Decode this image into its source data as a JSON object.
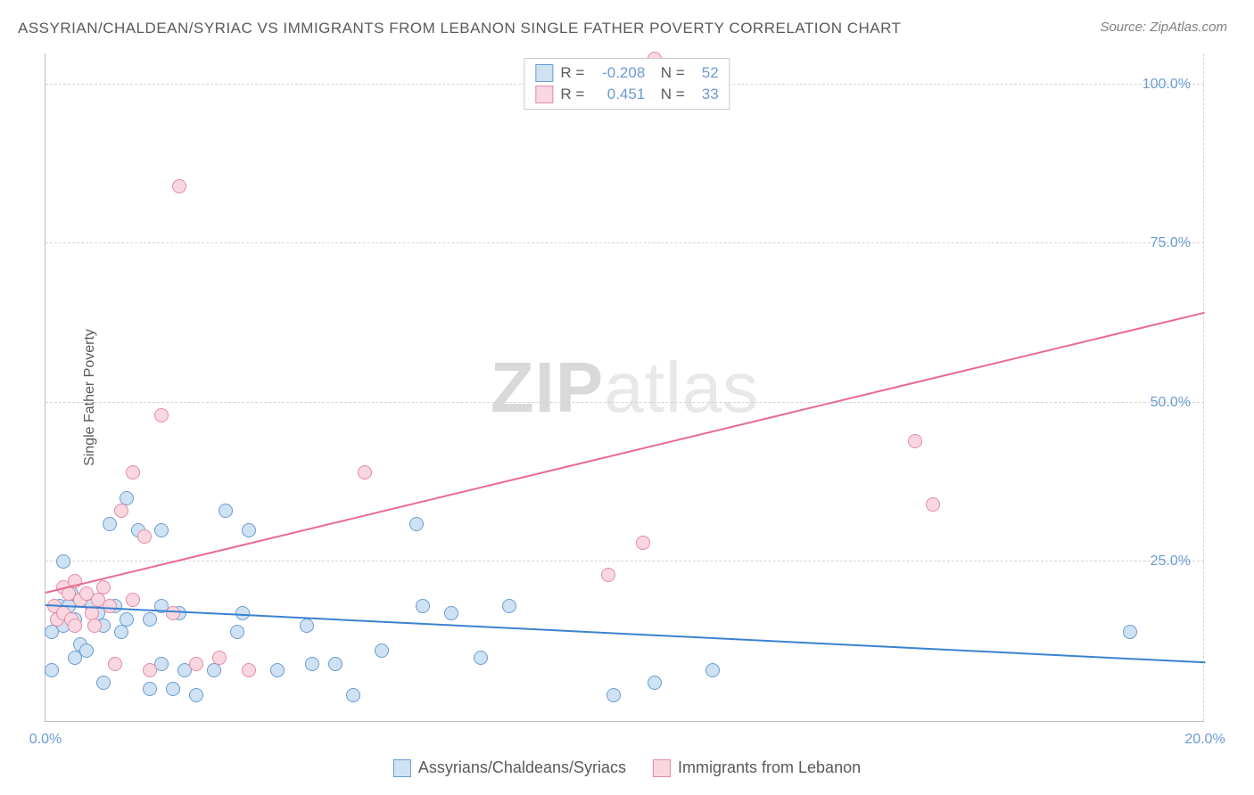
{
  "title": "ASSYRIAN/CHALDEAN/SYRIAC VS IMMIGRANTS FROM LEBANON SINGLE FATHER POVERTY CORRELATION CHART",
  "source": "Source: ZipAtlas.com",
  "watermark_a": "ZIP",
  "watermark_b": "atlas",
  "y_axis_label": "Single Father Poverty",
  "chart": {
    "type": "scatter",
    "xlim": [
      0,
      20
    ],
    "ylim": [
      0,
      105
    ],
    "x_ticks": [
      0,
      20
    ],
    "x_tick_labels": [
      "0.0%",
      "20.0%"
    ],
    "y_ticks": [
      25,
      50,
      75,
      100
    ],
    "y_tick_labels": [
      "25.0%",
      "50.0%",
      "75.0%",
      "100.0%"
    ],
    "grid_color": "#d5d5d5",
    "axis_color": "#bfbfbf",
    "background_color": "#ffffff",
    "series": [
      {
        "key": "assyrian",
        "label": "Assyrians/Chaldeans/Syriacs",
        "R": "-0.208",
        "N": "52",
        "fill": "#cfe2f3",
        "stroke": "#6b9bd1",
        "line_color": "#3b82d1",
        "trend": {
          "x1": 0,
          "y1": 18,
          "x2": 20,
          "y2": 9
        },
        "points": [
          [
            0.1,
            8
          ],
          [
            0.1,
            14
          ],
          [
            0.2,
            16
          ],
          [
            0.25,
            18
          ],
          [
            0.3,
            15
          ],
          [
            0.3,
            25
          ],
          [
            0.4,
            18
          ],
          [
            0.45,
            20
          ],
          [
            0.5,
            10
          ],
          [
            0.5,
            16
          ],
          [
            0.6,
            12
          ],
          [
            0.6,
            19
          ],
          [
            0.7,
            11
          ],
          [
            0.8,
            18
          ],
          [
            0.9,
            17
          ],
          [
            1.0,
            15
          ],
          [
            1.0,
            6
          ],
          [
            1.1,
            31
          ],
          [
            1.2,
            18
          ],
          [
            1.3,
            14
          ],
          [
            1.4,
            16
          ],
          [
            1.4,
            35
          ],
          [
            1.6,
            30
          ],
          [
            1.8,
            16
          ],
          [
            1.8,
            5
          ],
          [
            2.0,
            30
          ],
          [
            2.0,
            18
          ],
          [
            2.0,
            9
          ],
          [
            2.2,
            5
          ],
          [
            2.3,
            17
          ],
          [
            2.4,
            8
          ],
          [
            2.6,
            4
          ],
          [
            2.9,
            8
          ],
          [
            3.1,
            33
          ],
          [
            3.3,
            14
          ],
          [
            3.4,
            17
          ],
          [
            3.5,
            30
          ],
          [
            4.0,
            8
          ],
          [
            4.5,
            15
          ],
          [
            4.6,
            9
          ],
          [
            5.0,
            9
          ],
          [
            5.3,
            4
          ],
          [
            5.8,
            11
          ],
          [
            6.4,
            31
          ],
          [
            6.5,
            18
          ],
          [
            7.0,
            17
          ],
          [
            7.5,
            10
          ],
          [
            8.0,
            18
          ],
          [
            9.8,
            4
          ],
          [
            10.5,
            6
          ],
          [
            11.5,
            8
          ],
          [
            18.7,
            14
          ]
        ]
      },
      {
        "key": "lebanon",
        "label": "Immigrants from Lebanon",
        "R": "0.451",
        "N": "33",
        "fill": "#f9d7e0",
        "stroke": "#e48aa6",
        "line_color": "#e86a93",
        "trend": {
          "x1": 0,
          "y1": 20,
          "x2": 20,
          "y2": 64
        },
        "points": [
          [
            0.15,
            18
          ],
          [
            0.2,
            16
          ],
          [
            0.3,
            21
          ],
          [
            0.3,
            17
          ],
          [
            0.4,
            20
          ],
          [
            0.45,
            16
          ],
          [
            0.5,
            15
          ],
          [
            0.5,
            22
          ],
          [
            0.6,
            19
          ],
          [
            0.7,
            20
          ],
          [
            0.8,
            17
          ],
          [
            0.85,
            15
          ],
          [
            0.9,
            19
          ],
          [
            1.0,
            21
          ],
          [
            1.1,
            18
          ],
          [
            1.2,
            9
          ],
          [
            1.3,
            33
          ],
          [
            1.5,
            19
          ],
          [
            1.5,
            39
          ],
          [
            1.7,
            29
          ],
          [
            1.8,
            8
          ],
          [
            2.0,
            48
          ],
          [
            2.2,
            17
          ],
          [
            2.3,
            84
          ],
          [
            2.6,
            9
          ],
          [
            3.0,
            10
          ],
          [
            3.5,
            8
          ],
          [
            5.5,
            39
          ],
          [
            9.7,
            23
          ],
          [
            10.3,
            28
          ],
          [
            10.5,
            104
          ],
          [
            15.0,
            44
          ],
          [
            15.3,
            34
          ]
        ]
      }
    ]
  }
}
